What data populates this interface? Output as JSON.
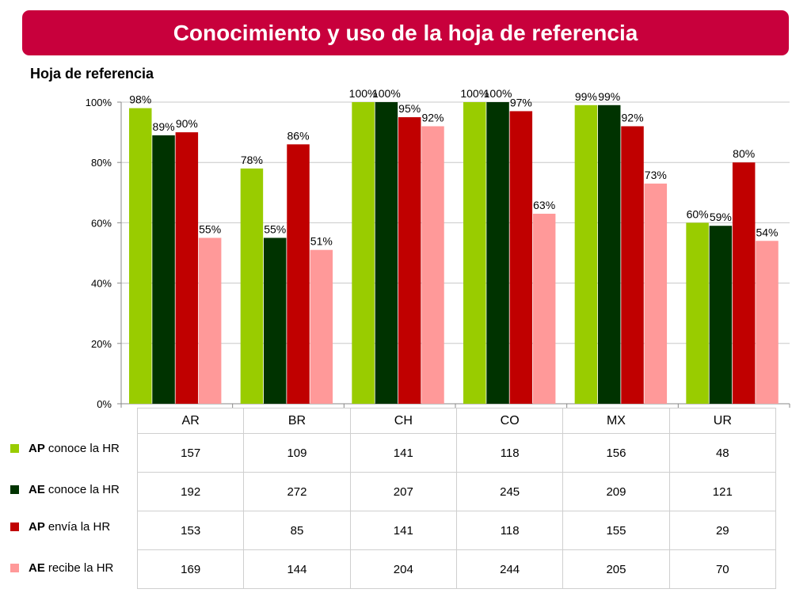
{
  "header": {
    "title": "Conocimiento y uso de la hoja de referencia",
    "title_bg": "#c8003c"
  },
  "chart_data": {
    "type": "bar",
    "title": "Hoja de referencia",
    "categories": [
      "AR",
      "BR",
      "CH",
      "CO",
      "MX",
      "UR"
    ],
    "y_ticks": [
      "0%",
      "20%",
      "40%",
      "60%",
      "80%",
      "100%"
    ],
    "ylim": [
      0,
      100
    ],
    "grid": true,
    "series": [
      {
        "name": "AP conoce la HR",
        "color": "#99cc00",
        "values": [
          98,
          78,
          100,
          100,
          99,
          60
        ],
        "labels": [
          "98%",
          "78%",
          "100%",
          "100%",
          "99%",
          "60%"
        ]
      },
      {
        "name": "AE conoce la HR",
        "color": "#003300",
        "values": [
          89,
          55,
          100,
          100,
          99,
          59
        ],
        "labels": [
          "89%",
          "55%",
          "100%",
          "100%",
          "99%",
          "59%"
        ]
      },
      {
        "name": "AP envía la HR",
        "color": "#c00000",
        "values": [
          90,
          86,
          95,
          97,
          92,
          80
        ],
        "labels": [
          "90%",
          "86%",
          "95%",
          "97%",
          "92%",
          "80%"
        ]
      },
      {
        "name": "AE recibe la HR",
        "color": "#ff9999",
        "values": [
          55,
          51,
          92,
          63,
          73,
          54
        ],
        "labels": [
          "55%",
          "51%",
          "92%",
          "63%",
          "73%",
          "54%"
        ]
      }
    ]
  },
  "legend": [
    {
      "bold": "AP",
      "rest": "conoce la HR",
      "color": "#99cc00"
    },
    {
      "bold": "AE",
      "rest": "conoce la HR",
      "color": "#003300"
    },
    {
      "bold": "AP",
      "rest": "envía la HR",
      "color": "#c00000"
    },
    {
      "bold": "AE",
      "rest": "recibe la HR",
      "color": "#ff9999"
    }
  ],
  "table": {
    "columns": [
      "AR",
      "BR",
      "CH",
      "CO",
      "MX",
      "UR"
    ],
    "rows": [
      [
        "157",
        "109",
        "141",
        "118",
        "156",
        "48"
      ],
      [
        "192",
        "272",
        "207",
        "245",
        "209",
        "121"
      ],
      [
        "153",
        "85",
        "141",
        "118",
        "155",
        "29"
      ],
      [
        "169",
        "144",
        "204",
        "244",
        "205",
        "70"
      ]
    ]
  }
}
